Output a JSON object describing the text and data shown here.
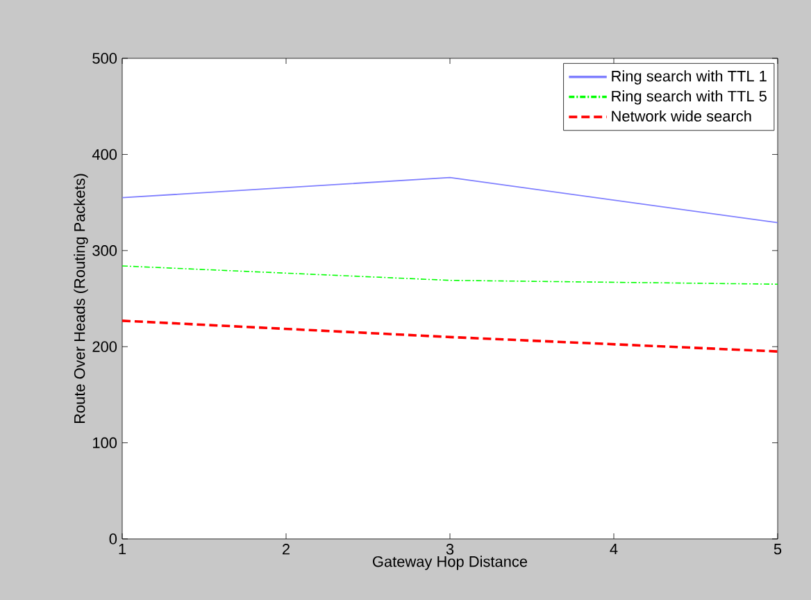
{
  "chart_data": {
    "type": "line",
    "xlabel": "Gateway Hop Distance",
    "ylabel": "Route Over Heads (Routing Packets)",
    "x": [
      1,
      3,
      5
    ],
    "xlim": [
      1,
      5
    ],
    "ylim": [
      0,
      500
    ],
    "xticks": [
      1,
      2,
      3,
      4,
      5
    ],
    "yticks": [
      0,
      100,
      200,
      300,
      400,
      500
    ],
    "legend": "top right",
    "grid": false,
    "series": [
      {
        "name": "Ring search with TTL 1",
        "color": "#7f7fff",
        "values": [
          355,
          376,
          329
        ],
        "line_style": "solid"
      },
      {
        "name": "Ring search with TTL 5",
        "color": "#00ff00",
        "values": [
          284,
          269,
          265
        ],
        "line_style": "dashdot"
      },
      {
        "name": "Network wide search",
        "color": "#ff0000",
        "values": [
          227,
          210,
          195
        ],
        "line_style": "dashed"
      }
    ]
  }
}
